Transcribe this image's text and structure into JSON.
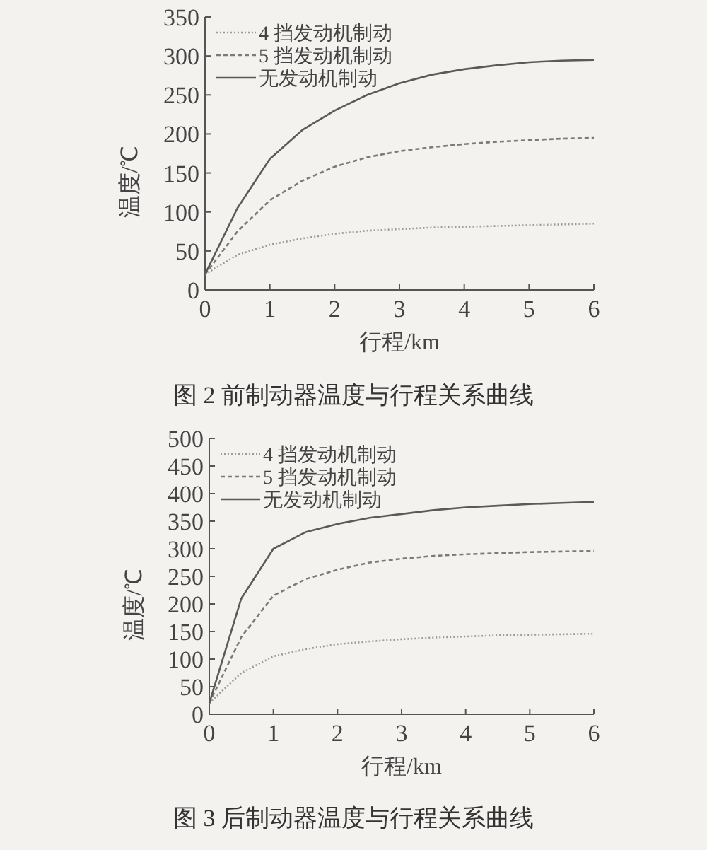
{
  "chart_data": [
    {
      "type": "line",
      "title": "图 2   前制动器温度与行程关系曲线",
      "xlabel": "行程/km",
      "ylabel": "温度/℃",
      "legend": "top left",
      "x": [
        0,
        0.5,
        1,
        1.5,
        2,
        2.5,
        3,
        3.5,
        4,
        4.5,
        5,
        5.5,
        6
      ],
      "xlim": [
        0,
        6
      ],
      "xticks": [
        0,
        1,
        2,
        3,
        4,
        5,
        6
      ],
      "ylim": [
        0,
        350
      ],
      "yticks": [
        0,
        50,
        100,
        150,
        200,
        250,
        300,
        350
      ],
      "series": [
        {
          "name": "4 挡发动机制动",
          "color": "#9a9a9a",
          "line_style": "dotted",
          "values": [
            20,
            45,
            58,
            66,
            72,
            76,
            78,
            80,
            81,
            82,
            83,
            84,
            85
          ]
        },
        {
          "name": "5 挡发动机制动",
          "color": "#7a7a7a",
          "line_style": "dashed",
          "values": [
            20,
            75,
            115,
            140,
            158,
            170,
            178,
            183,
            187,
            190,
            192,
            194,
            195
          ]
        },
        {
          "name": "无发动机制动",
          "color": "#5a5a5a",
          "line_style": "solid",
          "values": [
            20,
            105,
            168,
            205,
            230,
            250,
            265,
            276,
            283,
            288,
            292,
            294,
            295
          ]
        }
      ]
    },
    {
      "type": "line",
      "title": "图 3   后制动器温度与行程关系曲线",
      "xlabel": "行程/km",
      "ylabel": "温度/℃",
      "legend": "top left",
      "x": [
        0,
        0.5,
        1,
        1.5,
        2,
        2.5,
        3,
        3.5,
        4,
        4.5,
        5,
        5.5,
        6
      ],
      "xlim": [
        0,
        6
      ],
      "xticks": [
        0,
        1,
        2,
        3,
        4,
        5,
        6
      ],
      "ylim": [
        0,
        500
      ],
      "yticks": [
        0,
        50,
        100,
        150,
        200,
        250,
        300,
        350,
        400,
        450,
        500
      ],
      "series": [
        {
          "name": "4 挡发动机制动",
          "color": "#9a9a9a",
          "line_style": "dotted",
          "values": [
            20,
            75,
            105,
            118,
            127,
            132,
            136,
            139,
            141,
            143,
            144,
            145,
            146
          ]
        },
        {
          "name": "5 挡发动机制动",
          "color": "#7a7a7a",
          "line_style": "dashed",
          "values": [
            20,
            140,
            215,
            245,
            262,
            275,
            282,
            287,
            290,
            292,
            294,
            295,
            296
          ]
        },
        {
          "name": "无发动机制动",
          "color": "#5a5a5a",
          "line_style": "solid",
          "values": [
            20,
            210,
            300,
            330,
            345,
            356,
            363,
            370,
            375,
            378,
            381,
            383,
            385
          ]
        }
      ]
    }
  ]
}
